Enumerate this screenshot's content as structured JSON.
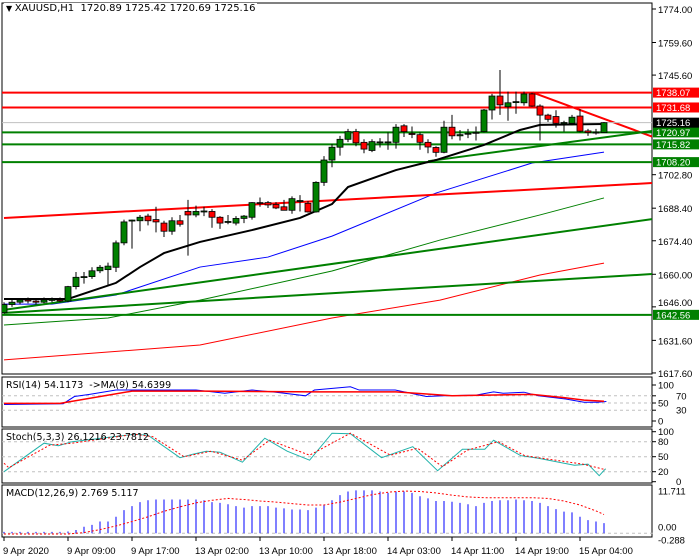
{
  "header": {
    "symbol_label": "XAUUSD,H1",
    "ohlc_text": "1720.89 1725.42 1720.69 1725.16",
    "arrow_icon": "triangle-down-icon"
  },
  "indicators": {
    "rsi_label": "RSI(14) 54.1173  ->MA(9) 54.6399",
    "stoch_label": "Stoch(5,3,3) 26.1216 23.7812",
    "macd_label": "MACD(12,26,9) 2.769 5.117"
  },
  "colors": {
    "bull": "#008000",
    "bear": "#ff0000",
    "support": "#008000",
    "resistance": "#ff0000",
    "ma20": "#000000",
    "ma50": "#0000ff",
    "ma100": "#008000",
    "ma200": "#ff0000",
    "rsi": "#0000ff",
    "rsi_ma": "#ff0000",
    "stoch_main": "#20b2aa",
    "stoch_signal": "#ff0000",
    "macd_hist": "#0000ff",
    "macd_signal": "#ff0000"
  },
  "chart_data": {
    "type": "candlestick",
    "symbol": "XAUUSD",
    "timeframe": "H1",
    "ylim": [
      1617.6,
      1774.0
    ],
    "price_ticks": [
      "1774.00",
      "1759.60",
      "1745.60",
      "1702.80",
      "1688.40",
      "1674.40",
      "1660.00",
      "1646.00",
      "1631.60",
      "1617.60"
    ],
    "time_labels": [
      {
        "bar": 0,
        "label": "9 Apr 2020"
      },
      {
        "bar": 8,
        "label": "9 Apr 09:00"
      },
      {
        "bar": 16,
        "label": "9 Apr 17:00"
      },
      {
        "bar": 24,
        "label": "13 Apr 02:00"
      },
      {
        "bar": 32,
        "label": "13 Apr 10:00"
      },
      {
        "bar": 40,
        "label": "13 Apr 18:00"
      },
      {
        "bar": 48,
        "label": "14 Apr 03:00"
      },
      {
        "bar": 56,
        "label": "14 Apr 11:00"
      },
      {
        "bar": 64,
        "label": "14 Apr 19:00"
      },
      {
        "bar": 72,
        "label": "15 Apr 04:00"
      }
    ],
    "candles_ohlc": [
      [
        1643.5,
        1648,
        1643,
        1647
      ],
      [
        1647,
        1649,
        1646,
        1648
      ],
      [
        1648,
        1649.5,
        1647,
        1649
      ],
      [
        1649,
        1650,
        1647.5,
        1648.5
      ],
      [
        1648.5,
        1649.5,
        1647,
        1648
      ],
      [
        1648,
        1650,
        1647.5,
        1649
      ],
      [
        1649,
        1650,
        1648,
        1649.2
      ],
      [
        1649,
        1650,
        1648,
        1648.5
      ],
      [
        1648.5,
        1655,
        1648,
        1654.7
      ],
      [
        1654.7,
        1661,
        1653.5,
        1658.7
      ],
      [
        1658.7,
        1661,
        1656,
        1659
      ],
      [
        1659,
        1663,
        1658,
        1661.5
      ],
      [
        1661.5,
        1664,
        1660.5,
        1663
      ],
      [
        1662,
        1665,
        1655,
        1663.5
      ],
      [
        1663,
        1674.5,
        1661,
        1673.5
      ],
      [
        1673.5,
        1683.5,
        1672.5,
        1682.5
      ],
      [
        1683,
        1683.5,
        1671,
        1683.3
      ],
      [
        1683,
        1685.5,
        1678.5,
        1684.5
      ],
      [
        1685,
        1686,
        1681,
        1683
      ],
      [
        1683.5,
        1689,
        1678,
        1682.5
      ],
      [
        1682,
        1683,
        1676,
        1678.5
      ],
      [
        1678.5,
        1684.5,
        1677,
        1683
      ],
      [
        1683,
        1685.5,
        1680.5,
        1681.5
      ],
      [
        1687,
        1692,
        1668,
        1685.5
      ],
      [
        1685.5,
        1689.5,
        1684.5,
        1687
      ],
      [
        1687,
        1689,
        1685,
        1687.2
      ],
      [
        1687,
        1688,
        1680,
        1684.5
      ],
      [
        1684.5,
        1685,
        1679.5,
        1682
      ],
      [
        1682.5,
        1685.5,
        1681.5,
        1682.7
      ],
      [
        1682,
        1685,
        1681,
        1684
      ],
      [
        1684,
        1685.5,
        1682,
        1685
      ],
      [
        1684.5,
        1691,
        1683.5,
        1690.8
      ],
      [
        1690.8,
        1693,
        1689,
        1690.5
      ],
      [
        1690.8,
        1691.5,
        1688.5,
        1689.8
      ],
      [
        1690,
        1691,
        1688,
        1688.5
      ],
      [
        1689,
        1692,
        1687.5,
        1687.5
      ],
      [
        1687.5,
        1693.5,
        1686,
        1692.5
      ],
      [
        1691.5,
        1694,
        1687,
        1691.7
      ],
      [
        1690.5,
        1691.5,
        1686.5,
        1686.8
      ],
      [
        1686.8,
        1700,
        1686.5,
        1699.5
      ],
      [
        1699.5,
        1710.8,
        1698,
        1709.1
      ],
      [
        1709.1,
        1716,
        1706,
        1714.6
      ],
      [
        1714.6,
        1719.5,
        1711,
        1718
      ],
      [
        1718,
        1722.5,
        1716.8,
        1721.3
      ],
      [
        1721.3,
        1722.5,
        1715,
        1716.5
      ],
      [
        1716.7,
        1718,
        1712,
        1713.8
      ],
      [
        1713.2,
        1718,
        1712.5,
        1717
      ],
      [
        1716.7,
        1718.5,
        1714.5,
        1716.9
      ],
      [
        1716.7,
        1721,
        1713.5,
        1716.9
      ],
      [
        1716.7,
        1724.5,
        1714,
        1723.2
      ],
      [
        1723.8,
        1724.5,
        1719,
        1721.3
      ],
      [
        1720.5,
        1723.5,
        1718.5,
        1720.3
      ],
      [
        1720,
        1721,
        1713.5,
        1716.7
      ],
      [
        1716.7,
        1718,
        1712,
        1714.7
      ],
      [
        1714.5,
        1715,
        1710.5,
        1712.4
      ],
      [
        1712.4,
        1726,
        1712,
        1723.2
      ],
      [
        1723.2,
        1728.5,
        1718,
        1719.5
      ],
      [
        1719.5,
        1722,
        1717.5,
        1720
      ],
      [
        1720.5,
        1722.5,
        1718.5,
        1720.6
      ],
      [
        1720.8,
        1723.5,
        1717.5,
        1721
      ],
      [
        1721.3,
        1731,
        1721,
        1730.6
      ],
      [
        1730.6,
        1737.5,
        1726.5,
        1736.6
      ],
      [
        1736.6,
        1747.8,
        1728.5,
        1732.8
      ],
      [
        1732,
        1738.5,
        1726,
        1733.7
      ],
      [
        1734,
        1738.5,
        1729,
        1734.2
      ],
      [
        1733.7,
        1738.5,
        1732.5,
        1737.5
      ],
      [
        1737.5,
        1738,
        1732,
        1732.3
      ],
      [
        1732.3,
        1733,
        1717.5,
        1728.4
      ],
      [
        1728.4,
        1729,
        1725.5,
        1726.6
      ],
      [
        1727.8,
        1730.5,
        1723,
        1724.9
      ],
      [
        1725,
        1726,
        1721.3,
        1725.2
      ],
      [
        1724.9,
        1728.5,
        1724,
        1727.5
      ],
      [
        1728,
        1731,
        1721,
        1721.5
      ],
      [
        1721.6,
        1722.5,
        1719.5,
        1720.9
      ],
      [
        1720.9,
        1722.5,
        1720,
        1721.1
      ],
      [
        1720.89,
        1725.42,
        1720.69,
        1725.16
      ]
    ],
    "current_price": "1725.16",
    "horizontal_levels": [
      {
        "price": "1738.07",
        "kind": "resistance"
      },
      {
        "price": "1731.68",
        "kind": "resistance"
      },
      {
        "price": "1720.97",
        "kind": "support"
      },
      {
        "price": "1715.82",
        "kind": "support"
      },
      {
        "price": "1708.20",
        "kind": "support"
      },
      {
        "price": "1642.56",
        "kind": "support"
      }
    ],
    "trendlines": [
      {
        "kind": "resistance",
        "from": [
          0,
          1684.2
        ],
        "to": [
          81,
          1699.2
        ]
      },
      {
        "kind": "resistance",
        "from": [
          66.1,
          1738.07
        ],
        "to": [
          81,
          1719.2
        ]
      },
      {
        "kind": "support",
        "from": [
          0,
          1644.7
        ],
        "to": [
          81,
          1683.7
        ]
      },
      {
        "kind": "support",
        "from": [
          0,
          1643.4
        ],
        "to": [
          81,
          1660.1
        ]
      },
      {
        "kind": "support",
        "from": [
          53,
          1708.6
        ],
        "to": [
          81,
          1721.6
        ]
      }
    ],
    "moving_averages": {
      "ma20": [
        [
          0,
          1649.4
        ],
        [
          8,
          1649.4
        ],
        [
          14,
          1656.3
        ],
        [
          17,
          1663.1
        ],
        [
          20,
          1669.1
        ],
        [
          24.5,
          1673.9
        ],
        [
          31,
          1679
        ],
        [
          37,
          1684.2
        ],
        [
          41,
          1690.2
        ],
        [
          43,
          1697.5
        ],
        [
          49,
          1704.8
        ],
        [
          54,
          1709.1
        ],
        [
          60,
          1715.6
        ],
        [
          64.5,
          1722
        ],
        [
          67,
          1724.2
        ],
        [
          75,
          1724.6
        ]
      ],
      "ma50": [
        [
          0,
          1647.2
        ],
        [
          6,
          1647.2
        ],
        [
          14,
          1651.1
        ],
        [
          24.5,
          1663.1
        ],
        [
          33,
          1667.4
        ],
        [
          41,
          1676.4
        ],
        [
          54,
          1694.9
        ],
        [
          66,
          1707.8
        ],
        [
          75,
          1712.5
        ]
      ],
      "ma100": [
        [
          0,
          1638.2
        ],
        [
          13,
          1641.2
        ],
        [
          24.5,
          1648.9
        ],
        [
          41,
          1661.4
        ],
        [
          54.5,
          1674.7
        ],
        [
          67,
          1685.5
        ],
        [
          75,
          1692.8
        ]
      ],
      "ma200": [
        [
          0,
          1623.2
        ],
        [
          24.5,
          1629.6
        ],
        [
          41,
          1641.2
        ],
        [
          54.5,
          1648.9
        ],
        [
          67,
          1659.7
        ],
        [
          75,
          1664.8
        ]
      ]
    },
    "rsi": {
      "ticks": [
        "100",
        "70",
        "50",
        "30",
        "0"
      ],
      "levels": [
        70,
        50,
        30
      ],
      "rsi": [
        [
          0,
          46
        ],
        [
          7.4,
          48
        ],
        [
          8.8,
          68
        ],
        [
          10.7,
          74
        ],
        [
          14,
          86
        ],
        [
          19,
          86
        ],
        [
          24,
          86
        ],
        [
          27.6,
          77
        ],
        [
          31,
          86
        ],
        [
          34,
          80
        ],
        [
          37.7,
          70
        ],
        [
          38.8,
          86
        ],
        [
          43.3,
          95
        ],
        [
          44.4,
          86
        ],
        [
          48.9,
          86
        ],
        [
          52.8,
          68
        ],
        [
          55,
          70
        ],
        [
          59,
          72
        ],
        [
          61.2,
          81
        ],
        [
          62.4,
          77
        ],
        [
          65,
          80
        ],
        [
          66.8,
          70
        ],
        [
          70.2,
          61
        ],
        [
          72.5,
          52
        ],
        [
          74.2,
          52
        ],
        [
          75.3,
          54
        ]
      ],
      "ma": [
        [
          0,
          49
        ],
        [
          7,
          49
        ],
        [
          16,
          83
        ],
        [
          25,
          83
        ],
        [
          39,
          81
        ],
        [
          49,
          81
        ],
        [
          56,
          70
        ],
        [
          66,
          74
        ],
        [
          70,
          65
        ],
        [
          72.5,
          58
        ],
        [
          75,
          55
        ]
      ]
    },
    "stochastic": {
      "ticks": [
        "100",
        "80",
        "50",
        "20",
        "0"
      ],
      "levels": [
        80,
        50,
        20
      ],
      "main": [
        [
          0,
          20
        ],
        [
          5,
          77
        ],
        [
          6.8,
          72
        ],
        [
          8.5,
          80
        ],
        [
          16.3,
          95
        ],
        [
          18,
          93
        ],
        [
          22,
          48
        ],
        [
          23.6,
          55
        ],
        [
          25.3,
          61
        ],
        [
          27,
          59
        ],
        [
          29.8,
          39
        ],
        [
          32.6,
          87
        ],
        [
          35.4,
          61
        ],
        [
          38.2,
          43
        ],
        [
          41,
          97
        ],
        [
          43.3,
          96
        ],
        [
          47.2,
          48
        ],
        [
          51.1,
          70
        ],
        [
          54.2,
          22
        ],
        [
          57.3,
          65
        ],
        [
          60.1,
          65
        ],
        [
          61.2,
          83
        ],
        [
          64.6,
          52
        ],
        [
          66.8,
          47
        ],
        [
          71.3,
          33
        ],
        [
          73,
          35
        ],
        [
          74.4,
          12
        ],
        [
          75.2,
          26
        ]
      ],
      "signal": [
        [
          0,
          37
        ],
        [
          0.6,
          28
        ],
        [
          5.7,
          73
        ],
        [
          8.5,
          77
        ],
        [
          16.3,
          95
        ],
        [
          18.6,
          90
        ],
        [
          22.5,
          50
        ],
        [
          25.9,
          61
        ],
        [
          29.8,
          43
        ],
        [
          33.2,
          83
        ],
        [
          38.2,
          53
        ],
        [
          43.3,
          97
        ],
        [
          48.3,
          53
        ],
        [
          51.7,
          67
        ],
        [
          54.8,
          30
        ],
        [
          57.9,
          63
        ],
        [
          61.8,
          80
        ],
        [
          65.1,
          52
        ],
        [
          72.4,
          35
        ],
        [
          75.2,
          24
        ]
      ]
    },
    "macd": {
      "ticks": [
        "11.711",
        "0.00",
        "-0.288"
      ],
      "histogram": [
        0.4,
        0.4,
        0.4,
        0.4,
        0.4,
        0.4,
        0.4,
        0.4,
        0.5,
        0.9,
        1.8,
        2.3,
        3.2,
        3.2,
        4.5,
        6.3,
        7.4,
        8.5,
        9.0,
        9.2,
        9.2,
        9.2,
        9.2,
        9.2,
        9.2,
        9.0,
        8.5,
        8.3,
        7.9,
        7.4,
        7.0,
        7.4,
        7.4,
        7.4,
        7.0,
        6.8,
        6.5,
        6.5,
        6.3,
        7.0,
        7.7,
        9.0,
        10.4,
        11.4,
        11.7,
        11.7,
        11.7,
        11.4,
        11.0,
        11.4,
        11.4,
        11.0,
        10.1,
        9.5,
        8.8,
        8.8,
        8.6,
        8.3,
        7.9,
        7.4,
        8.3,
        8.8,
        9.0,
        9.0,
        9.2,
        9.0,
        8.8,
        8.3,
        7.4,
        6.6,
        5.9,
        5.7,
        4.5,
        3.6,
        3.2,
        2.769
      ],
      "signal": [
        [
          0,
          -0.2
        ],
        [
          8,
          -0.2
        ],
        [
          10,
          0.2
        ],
        [
          12,
          1
        ],
        [
          14,
          2
        ],
        [
          16,
          3.2
        ],
        [
          18,
          4.5
        ],
        [
          20,
          6
        ],
        [
          22,
          7.2
        ],
        [
          24,
          8.3
        ],
        [
          26,
          9
        ],
        [
          28,
          9.5
        ],
        [
          30,
          9.2
        ],
        [
          32,
          8.8
        ],
        [
          34,
          8.5
        ],
        [
          36,
          8.1
        ],
        [
          38,
          7.7
        ],
        [
          40,
          7.7
        ],
        [
          42,
          8.5
        ],
        [
          44,
          9.5
        ],
        [
          46,
          10.5
        ],
        [
          48,
          11.2
        ],
        [
          50,
          11.5
        ],
        [
          52,
          11.4
        ],
        [
          54,
          11
        ],
        [
          56,
          10.4
        ],
        [
          58,
          9.9
        ],
        [
          60,
          9.7
        ],
        [
          62,
          9.7
        ],
        [
          64,
          9.7
        ],
        [
          66,
          9.7
        ],
        [
          68,
          9.5
        ],
        [
          70,
          8.8
        ],
        [
          72,
          7.7
        ],
        [
          74,
          6.1
        ],
        [
          75,
          5.117
        ]
      ]
    }
  }
}
